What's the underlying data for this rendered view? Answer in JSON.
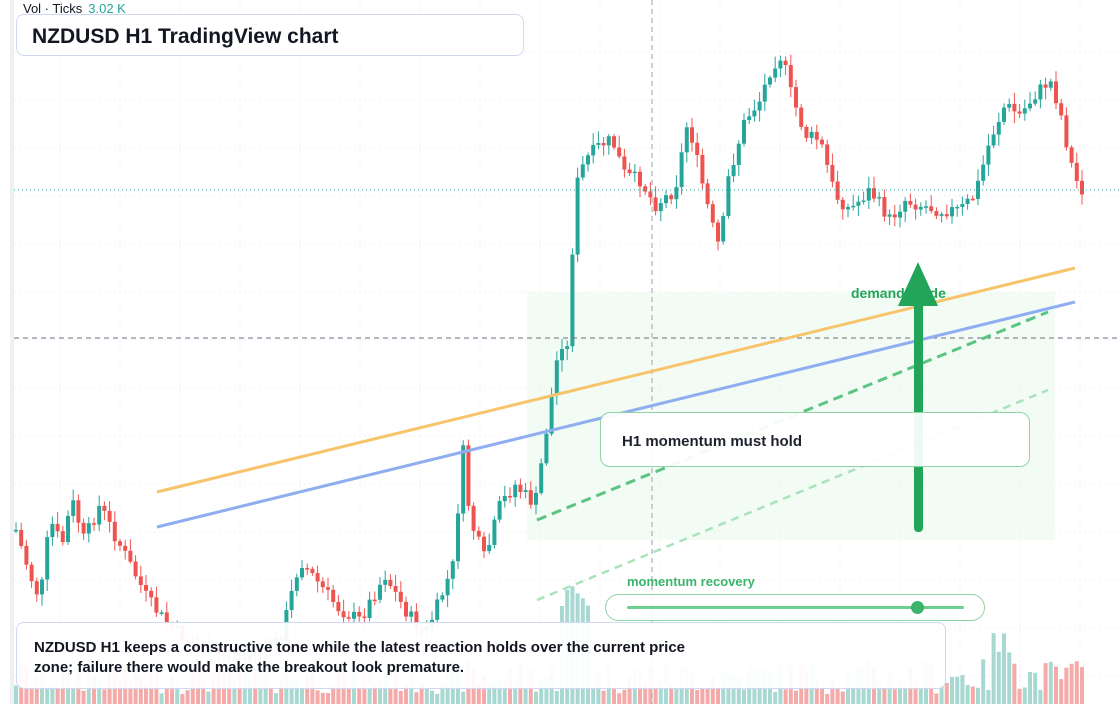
{
  "header": {
    "legend_name": "Vol · Ticks",
    "legend_value": "3.02 K",
    "title": "NZDUSD H1 TradingView chart"
  },
  "annotations": {
    "demand_label": "demand guide",
    "momentum_label": "H1 momentum must hold",
    "recovery_label": "momentum recovery",
    "recovery_level": 0.86,
    "commentary": "NZDUSD H1 keeps a constructive tone while the latest reaction holds over the current price zone; failure there would make the breakout look premature."
  },
  "colors": {
    "up": "#26a69a",
    "down": "#ef5350",
    "volume_up": "#a7d8d1",
    "volume_down": "#f4aaa8",
    "orange_line": "#f7c46c",
    "blue_line": "#8eaef0",
    "green_accent": "#23a559"
  },
  "icons": {
    "arrow": "arrow-up-icon"
  }
}
